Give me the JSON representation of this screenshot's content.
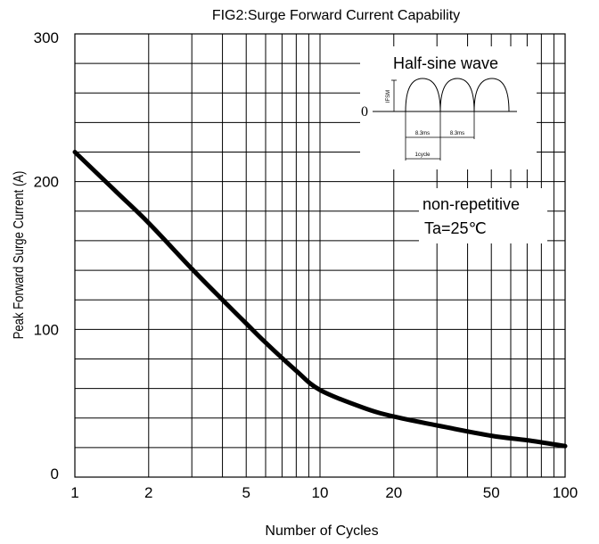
{
  "chart_data": {
    "type": "line",
    "title": "FIG2:Surge Forward Current Capability",
    "xlabel": "Number of Cycles",
    "ylabel": "Peak Forward Surge Current (A)",
    "xscale": "log",
    "xlim": [
      1,
      100
    ],
    "ylim": [
      0,
      300
    ],
    "xticks": [
      "1",
      "2",
      "5",
      "10",
      "20",
      "50",
      "100"
    ],
    "yticks": [
      "0",
      "100",
      "200",
      "300"
    ],
    "grid": true,
    "series": [
      {
        "x": [
          1,
          1.5,
          2,
          3,
          4,
          5,
          6,
          8,
          10,
          15,
          20,
          30,
          50,
          70,
          100
        ],
        "values": [
          220,
          192,
          172,
          141,
          120,
          104,
          91,
          72,
          59,
          47,
          41,
          35,
          28,
          25,
          21
        ]
      }
    ],
    "annotations": {
      "waveform_title": "Half-sine wave",
      "zero_label": "0",
      "ifsm_label": "IFSM",
      "period_label_1": "8.3ms",
      "period_label_2": "8.3ms",
      "cycle_label": "1cycle",
      "condition_1": "non-repetitive",
      "condition_2": "Ta=25℃"
    }
  },
  "colors": {
    "curve": "#000000",
    "grid": "#000000",
    "background": "#ffffff"
  }
}
